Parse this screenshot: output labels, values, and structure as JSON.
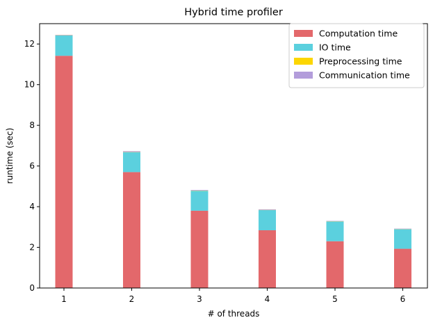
{
  "chart_data": {
    "type": "bar",
    "stacked": true,
    "title": "Hybrid time profiler",
    "xlabel": "# of threads",
    "ylabel": "runtime (sec)",
    "categories": [
      "1",
      "2",
      "3",
      "4",
      "5",
      "6"
    ],
    "ylim": [
      0,
      13
    ],
    "yticks": [
      0,
      2,
      4,
      6,
      8,
      10,
      12
    ],
    "legend_position": "top-right",
    "grid": false,
    "series": [
      {
        "name": "Computation time",
        "color": "#e3686b",
        "values": [
          11.42,
          5.7,
          3.8,
          2.84,
          2.3,
          1.93
        ]
      },
      {
        "name": "IO time",
        "color": "#5bd0de",
        "values": [
          1.0,
          0.98,
          0.98,
          0.99,
          0.97,
          0.96
        ]
      },
      {
        "name": "Preprocessing time",
        "color": "#fcd602",
        "values": [
          0.01,
          0.01,
          0.01,
          0.01,
          0.01,
          0.01
        ]
      },
      {
        "name": "Communication time",
        "color": "#b39ddb",
        "values": [
          0.02,
          0.04,
          0.03,
          0.03,
          0.02,
          0.02
        ]
      }
    ]
  }
}
